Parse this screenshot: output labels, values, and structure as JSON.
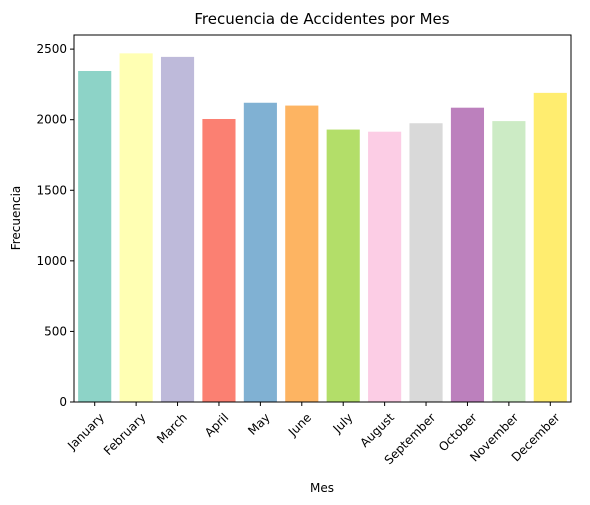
{
  "chart_data": {
    "type": "bar",
    "title": "Frecuencia de Accidentes por Mes",
    "xlabel": "Mes",
    "ylabel": "Frecuencia",
    "ylim": [
      0,
      2600
    ],
    "yticks": [
      0,
      500,
      1000,
      1500,
      2000,
      2500
    ],
    "grid": false,
    "categories": [
      "January",
      "February",
      "March",
      "April",
      "May",
      "June",
      "July",
      "August",
      "September",
      "October",
      "November",
      "December"
    ],
    "values": [
      2345,
      2470,
      2445,
      2005,
      2120,
      2100,
      1930,
      1915,
      1975,
      2085,
      1990,
      2190
    ],
    "colors": [
      "#8dd3c7",
      "#ffffb3",
      "#bebada",
      "#fb8072",
      "#80b1d3",
      "#fdb462",
      "#b3de69",
      "#fccde5",
      "#d9d9d9",
      "#bc80bd",
      "#ccebc5",
      "#ffed6f"
    ]
  }
}
